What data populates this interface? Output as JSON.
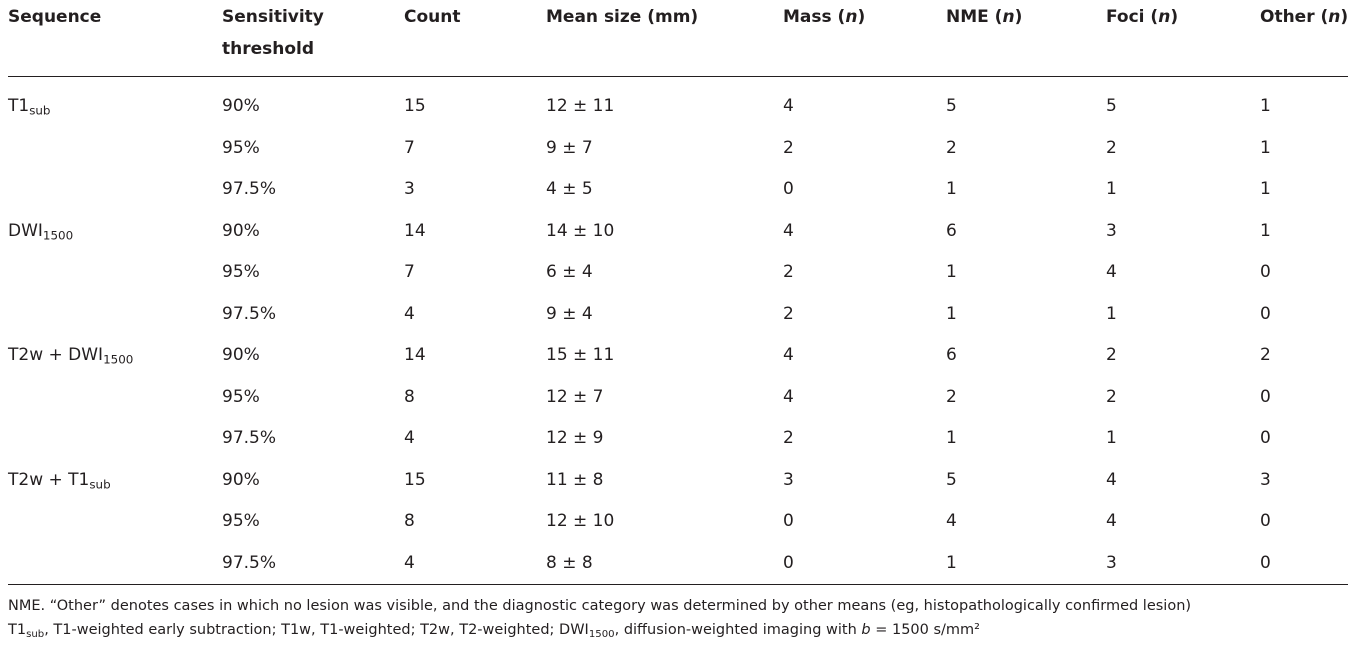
{
  "header": [
    [
      {
        "t": "Sequence"
      }
    ],
    [
      {
        "t": "Sensitivity threshold"
      }
    ],
    [
      {
        "t": "Count"
      }
    ],
    [
      {
        "t": "Mean size (mm)"
      }
    ],
    [
      {
        "t": "Mass ("
      },
      {
        "t": "n",
        "s": "i"
      },
      {
        "t": ")"
      }
    ],
    [
      {
        "t": "NME ("
      },
      {
        "t": "n",
        "s": "i"
      },
      {
        "t": ")"
      }
    ],
    [
      {
        "t": "Foci ("
      },
      {
        "t": "n",
        "s": "i"
      },
      {
        "t": ")"
      }
    ],
    [
      {
        "t": "Other ("
      },
      {
        "t": "n",
        "s": "i"
      },
      {
        "t": ")"
      }
    ]
  ],
  "groups": [
    {
      "sequence": [
        {
          "t": "T1"
        },
        {
          "t": "sub",
          "s": "sub"
        }
      ],
      "rows": [
        [
          "90%",
          15,
          "12 ± 11",
          4,
          5,
          5,
          1
        ],
        [
          "95%",
          7,
          "9 ± 7",
          2,
          2,
          2,
          1
        ],
        [
          "97.5%",
          3,
          "4 ± 5",
          0,
          1,
          1,
          1
        ]
      ]
    },
    {
      "sequence": [
        {
          "t": "DWI"
        },
        {
          "t": "1500",
          "s": "sub"
        }
      ],
      "rows": [
        [
          "90%",
          14,
          "14 ± 10",
          4,
          6,
          3,
          1
        ],
        [
          "95%",
          7,
          "6 ± 4",
          2,
          1,
          4,
          0
        ],
        [
          "97.5%",
          4,
          "9 ± 4",
          2,
          1,
          1,
          0
        ]
      ]
    },
    {
      "sequence": [
        {
          "t": "T2w + DWI"
        },
        {
          "t": "1500",
          "s": "sub"
        }
      ],
      "rows": [
        [
          "90%",
          14,
          "15 ± 11",
          4,
          6,
          2,
          2
        ],
        [
          "95%",
          8,
          "12 ± 7",
          4,
          2,
          2,
          0
        ],
        [
          "97.5%",
          4,
          "12 ± 9",
          2,
          1,
          1,
          0
        ]
      ]
    },
    {
      "sequence": [
        {
          "t": "T2w + T1"
        },
        {
          "t": "sub",
          "s": "sub"
        }
      ],
      "rows": [
        [
          "90%",
          15,
          "11 ± 8",
          3,
          5,
          4,
          3
        ],
        [
          "95%",
          8,
          "12 ± 10",
          0,
          4,
          4,
          0
        ],
        [
          "97.5%",
          4,
          "8 ± 8",
          0,
          1,
          3,
          0
        ]
      ]
    }
  ],
  "footnote": [
    [
      {
        "t": "NME. “Other” denotes cases in which no lesion was visible, and the diagnostic category was determined by other means (eg, histopathologically confirmed lesion)"
      }
    ],
    [
      {
        "t": "T1"
      },
      {
        "t": "sub",
        "s": "sub"
      },
      {
        "t": ", T1-weighted early subtraction; T1w, T1-weighted; T2w, T2-weighted; DWI"
      },
      {
        "t": "1500",
        "s": "sub"
      },
      {
        "t": ", diffusion-weighted imaging with "
      },
      {
        "t": "b",
        "s": "i"
      },
      {
        "t": " = 1500 s/mm²"
      }
    ]
  ]
}
